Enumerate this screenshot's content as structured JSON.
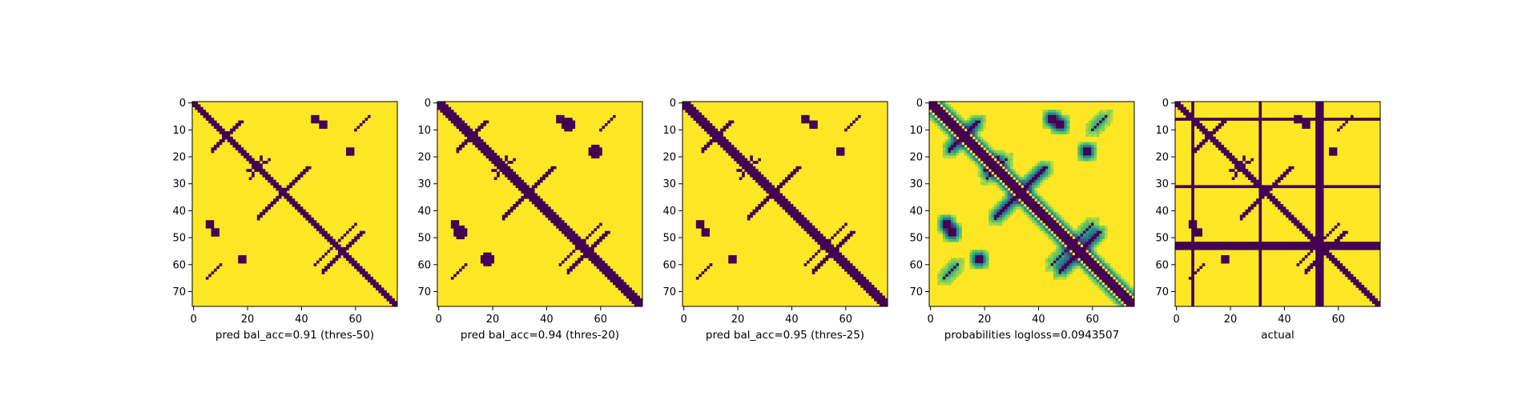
{
  "chart_data": [
    {
      "type": "heatmap",
      "xlabel": "pred bal_acc=0.91 (thres-50)",
      "size": 76,
      "xticks": [
        0,
        20,
        40,
        60
      ],
      "yticks": [
        0,
        10,
        20,
        30,
        40,
        50,
        60,
        70
      ],
      "colormap": {
        "low": "#440154",
        "high": "#fde725"
      },
      "value_kind": "binary",
      "pattern": "binary prediction: contact diagonal band, off-diagonal arms and isolated contact blobs"
    },
    {
      "type": "heatmap",
      "xlabel": "pred bal_acc=0.94 (thres-20)",
      "size": 76,
      "xticks": [
        0,
        20,
        40,
        60
      ],
      "yticks": [
        0,
        10,
        20,
        30,
        40,
        50,
        60,
        70
      ],
      "colormap": {
        "low": "#440154",
        "high": "#fde725"
      },
      "value_kind": "binary",
      "pattern": "binary prediction at threshold 20, larger contact blobs"
    },
    {
      "type": "heatmap",
      "xlabel": "pred bal_acc=0.95 (thres-25)",
      "size": 76,
      "xticks": [
        0,
        20,
        40,
        60
      ],
      "yticks": [
        0,
        10,
        20,
        30,
        40,
        50,
        60,
        70
      ],
      "colormap": {
        "low": "#440154",
        "high": "#fde725"
      },
      "value_kind": "binary",
      "pattern": "binary prediction at threshold 25"
    },
    {
      "type": "heatmap",
      "xlabel": "probabilities logloss=0.0943507",
      "size": 76,
      "xticks": [
        0,
        20,
        40,
        60
      ],
      "yticks": [
        0,
        10,
        20,
        30,
        40,
        50,
        60,
        70
      ],
      "colormap": {
        "low": "#440154",
        "mid": "#21918c",
        "high": "#fde725"
      },
      "value_kind": "continuous",
      "pattern": "predicted contact probabilities with soft halos"
    },
    {
      "type": "heatmap",
      "xlabel": "actual",
      "size": 76,
      "xticks": [
        0,
        20,
        40,
        60
      ],
      "yticks": [
        0,
        10,
        20,
        30,
        40,
        50,
        60,
        70
      ],
      "colormap": {
        "low": "#440154",
        "high": "#fde725"
      },
      "value_kind": "binary",
      "pattern": "ground-truth contact map with masked rows and columns",
      "masked_indices": [
        6,
        31,
        52,
        53,
        54
      ]
    }
  ]
}
